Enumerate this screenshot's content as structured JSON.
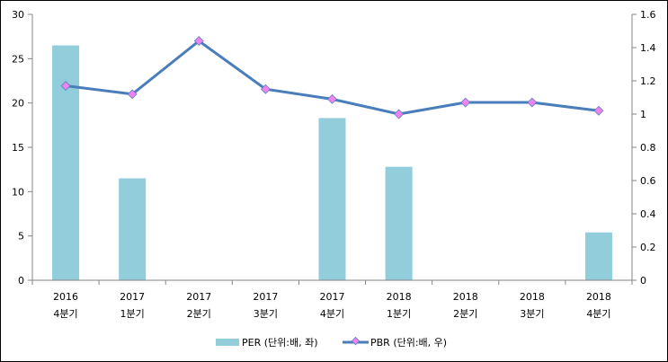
{
  "chart_data": {
    "type": "bar+line",
    "categories": [
      [
        "2016",
        "4분기"
      ],
      [
        "2017",
        "1분기"
      ],
      [
        "2017",
        "2분기"
      ],
      [
        "2017",
        "3분기"
      ],
      [
        "2017",
        "4분기"
      ],
      [
        "2018",
        "1분기"
      ],
      [
        "2018",
        "2분기"
      ],
      [
        "2018",
        "3분기"
      ],
      [
        "2018",
        "4분기"
      ]
    ],
    "series": [
      {
        "name": "PER (단위:배, 좌)",
        "type": "bar",
        "axis": "left",
        "color": "#92CDDC",
        "values": [
          26.5,
          11.5,
          null,
          null,
          18.3,
          12.8,
          null,
          null,
          5.4
        ]
      },
      {
        "name": "PBR (단위:배, 우)",
        "type": "line",
        "axis": "right",
        "color": "#4A7EBB",
        "marker_color": "#EE82EE",
        "values": [
          1.17,
          1.12,
          1.44,
          1.15,
          1.09,
          1.0,
          1.07,
          1.07,
          1.02
        ]
      }
    ],
    "left_axis": {
      "ylim": [
        0,
        30
      ],
      "ticks": [
        "0",
        "5",
        "10",
        "15",
        "20",
        "25",
        "30"
      ]
    },
    "right_axis": {
      "ylim": [
        0,
        1.6
      ],
      "ticks": [
        "0",
        "0.2",
        "0.4",
        "0.6",
        "0.8",
        "1",
        "1.2",
        "1.4",
        "1.6"
      ]
    },
    "grid": false,
    "legend": "bottom"
  }
}
